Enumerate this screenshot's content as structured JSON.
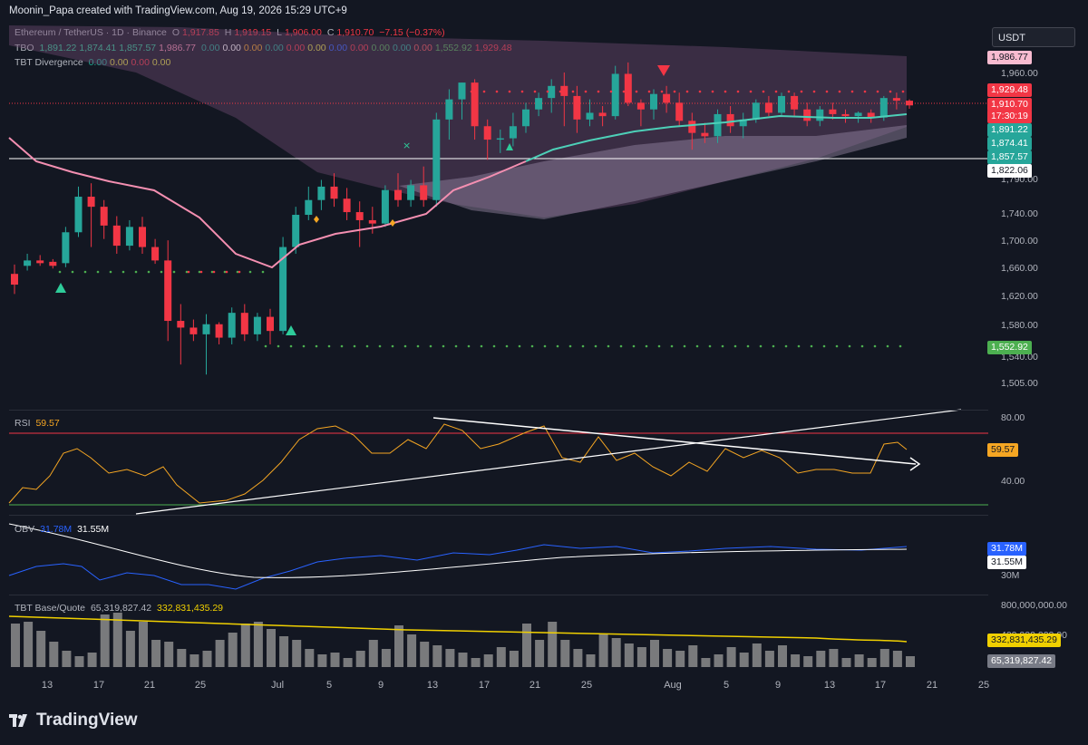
{
  "header": {
    "text": "Moonin_Papa created with TradingView.com, Aug 19, 2026 15:29 UTC+9"
  },
  "legend": {
    "symbol": "Ethereum / TetherUS · 1D · Binance",
    "o_label": "O",
    "o": "1,917.85",
    "h_label": "H",
    "h": "1,919.15",
    "l_label": "L",
    "l": "1,906.00",
    "c_label": "C",
    "c": "1,910.70",
    "change": "−7.15 (−0.37%)",
    "values": [
      "0.00",
      "0.00",
      "0.00",
      "0.00",
      "0.00",
      "0.00",
      "0.00",
      "0.00",
      "0.00",
      "0.00",
      "0.00",
      "1,552.92",
      "1,929.48"
    ],
    "value_colors": [
      "#22ab94",
      "#ffffff",
      "#f5a623",
      "#22ab94",
      "#f23645",
      "#e0e040",
      "#2962ff",
      "#f23645",
      "#4caf50",
      "#22ab94",
      "#ef5350",
      "#4caf50",
      "#f23645"
    ],
    "tbo_label": "TBO",
    "tbo_values": [
      "1,891.22",
      "1,874.41",
      "1,857.57",
      "1,986.77"
    ],
    "tbo_colors": [
      "#2ecc9a",
      "#2ecc9a",
      "#2ecc9a",
      "#f48fb1"
    ],
    "div_label": "TBT Divergence",
    "div_values": [
      "0.00",
      "0.00",
      "0.00",
      "0.00"
    ],
    "div_colors": [
      "#22ab94",
      "#e0e040",
      "#f23645",
      "#e0e040"
    ]
  },
  "currency_button": "USDT",
  "price_axis": [
    "1,960.00",
    "1,790.00",
    "1,740.00",
    "1,700.00",
    "1,660.00",
    "1,620.00",
    "1,580.00",
    "1,540.00",
    "1,505.00"
  ],
  "price_badges": [
    {
      "text": "1,986.77",
      "bg": "#f8bbd0",
      "fg": "#131722"
    },
    {
      "text": "1,929.48",
      "bg": "#f23645",
      "fg": "#ffffff"
    },
    {
      "text": "1,910.70",
      "bg": "#f23645",
      "fg": "#ffffff"
    },
    {
      "text": "17:30:19",
      "bg": "#f23645",
      "fg": "#ffffff"
    },
    {
      "text": "1,891.22",
      "bg": "#26a69a",
      "fg": "#ffffff"
    },
    {
      "text": "1,874.41",
      "bg": "#26a69a",
      "fg": "#ffffff"
    },
    {
      "text": "1,857.57",
      "bg": "#26a69a",
      "fg": "#ffffff"
    },
    {
      "text": "1,822.06",
      "bg": "#ffffff",
      "fg": "#131722"
    },
    {
      "text": "1,552.92",
      "bg": "#4caf50",
      "fg": "#ffffff"
    }
  ],
  "rsi": {
    "label": "RSI",
    "value": "59.57",
    "axis": [
      "80.00",
      "40.00"
    ],
    "badge": "59.57"
  },
  "obv": {
    "label": "OBV",
    "v1": "31.78M",
    "v2": "31.55M",
    "axis": "30M",
    "badge1": "31.78M",
    "badge2": "31.55M"
  },
  "tbt": {
    "label": "TBT Base/Quote",
    "v1": "65,319,827.42",
    "v2": "332,831,435.29",
    "axis": "800,000,000.00",
    "axis2": "400,000,000.00",
    "badge1": "332,831,435.29",
    "badge2": "65,319,827.42"
  },
  "x_axis": [
    "13",
    "17",
    "21",
    "25",
    "Jul",
    "5",
    "9",
    "13",
    "17",
    "21",
    "25",
    "Aug",
    "5",
    "9",
    "13",
    "17",
    "21",
    "25"
  ],
  "branding": "TradingView",
  "colors": {
    "up": "#26a69a",
    "down": "#f23645",
    "bg": "#131722",
    "ema": "#f48fb1",
    "mid": "#4dd0b8",
    "rsi": "#f5a623",
    "obv": "#2962ff",
    "vol": "#8c8c8c",
    "volma": "#f0d000"
  }
}
